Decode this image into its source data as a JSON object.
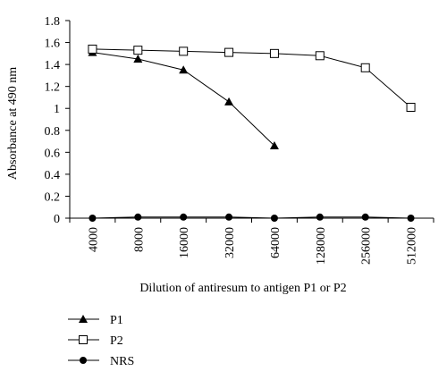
{
  "chart_data": {
    "type": "line",
    "title": "",
    "xlabel": "Dilution of antiresum to antigen P1 or P2",
    "ylabel": "Absorbance at 490 nm",
    "categories": [
      "4000",
      "8000",
      "16000",
      "32000",
      "64000",
      "128000",
      "256000",
      "512000"
    ],
    "ylim": [
      0,
      1.8
    ],
    "yticks": [
      0,
      0.2,
      0.4,
      0.6,
      0.8,
      1,
      1.2,
      1.4,
      1.6,
      1.8
    ],
    "ytick_labels": [
      "0",
      "0.2",
      "0.4",
      "0.6",
      "0.8",
      "1",
      "1.2",
      "1.4",
      "1.6",
      "1.8"
    ],
    "grid": false,
    "legend_position": "bottom-left",
    "series": [
      {
        "name": "P1",
        "marker": "filled-triangle",
        "values": [
          1.51,
          1.45,
          1.35,
          1.06,
          0.66,
          null,
          null,
          null
        ]
      },
      {
        "name": "P2",
        "marker": "open-square",
        "values": [
          1.54,
          1.53,
          1.52,
          1.51,
          1.5,
          1.48,
          1.37,
          1.01
        ]
      },
      {
        "name": "NRS",
        "marker": "filled-circle",
        "values": [
          0.0,
          0.01,
          0.01,
          0.01,
          0.0,
          0.01,
          0.01,
          0.0
        ]
      }
    ]
  }
}
